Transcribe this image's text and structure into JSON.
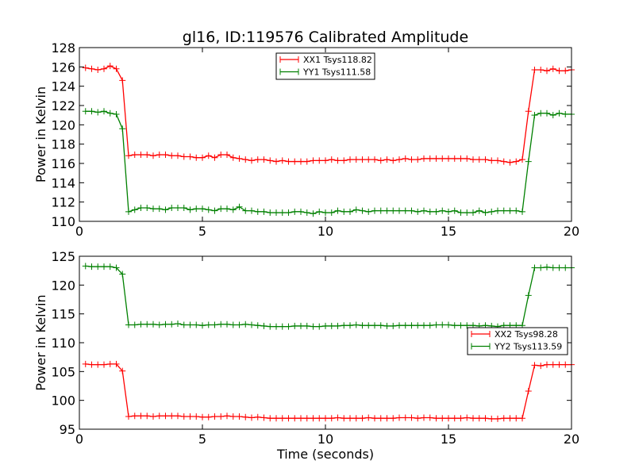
{
  "title": "gl16, ID:119576 Calibrated Amplitude",
  "colors": {
    "xx": "#ff0000",
    "yy": "#008000"
  },
  "chart_data": [
    {
      "type": "line",
      "title": "gl16, ID:119576 Calibrated Amplitude",
      "xlabel": "",
      "ylabel": "Power in Kelvin",
      "xlim": [
        0,
        20
      ],
      "ylim": [
        110,
        128
      ],
      "xticks": [
        0,
        5,
        10,
        15,
        20
      ],
      "yticks": [
        110,
        112,
        114,
        116,
        118,
        120,
        122,
        124,
        126,
        128
      ],
      "legend_position": "top-center",
      "grid": false,
      "series": [
        {
          "name": "XX1 Tsys118.82",
          "color": "#ff0000",
          "x": [
            0.25,
            0.5,
            0.75,
            1.0,
            1.25,
            1.5,
            1.75,
            2.0,
            2.25,
            2.5,
            2.75,
            3.0,
            3.25,
            3.5,
            3.75,
            4.0,
            4.25,
            4.5,
            4.75,
            5.0,
            5.25,
            5.5,
            5.75,
            6.0,
            6.25,
            6.5,
            6.75,
            7.0,
            7.25,
            7.5,
            7.75,
            8.0,
            8.25,
            8.5,
            8.75,
            9.0,
            9.25,
            9.5,
            9.75,
            10.0,
            10.25,
            10.5,
            10.75,
            11.0,
            11.25,
            11.5,
            11.75,
            12.0,
            12.25,
            12.5,
            12.75,
            13.0,
            13.25,
            13.5,
            13.75,
            14.0,
            14.25,
            14.5,
            14.75,
            15.0,
            15.25,
            15.5,
            15.75,
            16.0,
            16.25,
            16.5,
            16.75,
            17.0,
            17.25,
            17.5,
            17.75,
            18.0,
            18.25,
            18.5,
            18.75,
            19.0,
            19.25,
            19.5,
            19.75,
            20.0
          ],
          "values": [
            125.9,
            125.8,
            125.7,
            125.8,
            126.1,
            125.8,
            124.6,
            116.8,
            116.9,
            116.9,
            116.9,
            116.8,
            116.9,
            116.9,
            116.8,
            116.8,
            116.7,
            116.7,
            116.6,
            116.6,
            116.8,
            116.6,
            116.9,
            116.9,
            116.6,
            116.5,
            116.4,
            116.3,
            116.4,
            116.4,
            116.3,
            116.2,
            116.3,
            116.2,
            116.2,
            116.2,
            116.2,
            116.3,
            116.3,
            116.3,
            116.4,
            116.3,
            116.3,
            116.4,
            116.4,
            116.4,
            116.4,
            116.4,
            116.3,
            116.4,
            116.3,
            116.4,
            116.5,
            116.4,
            116.4,
            116.5,
            116.5,
            116.5,
            116.5,
            116.5,
            116.5,
            116.5,
            116.5,
            116.4,
            116.4,
            116.4,
            116.3,
            116.3,
            116.2,
            116.1,
            116.2,
            116.4,
            121.4,
            125.7,
            125.7,
            125.6,
            125.8,
            125.6,
            125.6,
            125.7
          ]
        },
        {
          "name": "YY1 Tsys111.58",
          "color": "#008000",
          "x": [
            0.25,
            0.5,
            0.75,
            1.0,
            1.25,
            1.5,
            1.75,
            2.0,
            2.25,
            2.5,
            2.75,
            3.0,
            3.25,
            3.5,
            3.75,
            4.0,
            4.25,
            4.5,
            4.75,
            5.0,
            5.25,
            5.5,
            5.75,
            6.0,
            6.25,
            6.5,
            6.75,
            7.0,
            7.25,
            7.5,
            7.75,
            8.0,
            8.25,
            8.5,
            8.75,
            9.0,
            9.25,
            9.5,
            9.75,
            10.0,
            10.25,
            10.5,
            10.75,
            11.0,
            11.25,
            11.5,
            11.75,
            12.0,
            12.25,
            12.5,
            12.75,
            13.0,
            13.25,
            13.5,
            13.75,
            14.0,
            14.25,
            14.5,
            14.75,
            15.0,
            15.25,
            15.5,
            15.75,
            16.0,
            16.25,
            16.5,
            16.75,
            17.0,
            17.25,
            17.5,
            17.75,
            18.0,
            18.25,
            18.5,
            18.75,
            19.0,
            19.25,
            19.5,
            19.75,
            20.0
          ],
          "values": [
            121.4,
            121.4,
            121.3,
            121.4,
            121.2,
            121.1,
            119.6,
            111.0,
            111.2,
            111.4,
            111.4,
            111.3,
            111.3,
            111.2,
            111.4,
            111.4,
            111.4,
            111.2,
            111.3,
            111.3,
            111.2,
            111.1,
            111.3,
            111.3,
            111.2,
            111.5,
            111.1,
            111.1,
            111.0,
            111.0,
            110.9,
            110.9,
            110.9,
            110.9,
            111.0,
            111.0,
            110.9,
            110.8,
            111.0,
            110.9,
            110.9,
            111.1,
            111.0,
            111.0,
            111.2,
            111.1,
            111.0,
            111.1,
            111.1,
            111.1,
            111.1,
            111.1,
            111.1,
            111.1,
            111.0,
            111.1,
            111.0,
            111.0,
            111.1,
            111.0,
            111.1,
            110.9,
            110.9,
            110.9,
            111.1,
            110.9,
            111.0,
            111.1,
            111.1,
            111.1,
            111.1,
            111.0,
            116.2,
            121.0,
            121.2,
            121.2,
            121.0,
            121.2,
            121.1,
            121.1
          ]
        }
      ]
    },
    {
      "type": "line",
      "title": "",
      "xlabel": "Time (seconds)",
      "ylabel": "Power in Kelvin",
      "xlim": [
        0,
        20
      ],
      "ylim": [
        95,
        125
      ],
      "xticks": [
        0,
        5,
        10,
        15,
        20
      ],
      "yticks": [
        95,
        100,
        105,
        110,
        115,
        120,
        125
      ],
      "legend_position": "center-right",
      "grid": false,
      "series": [
        {
          "name": "XX2 Tsys98.28",
          "color": "#ff0000",
          "x": [
            0.25,
            0.5,
            0.75,
            1.0,
            1.25,
            1.5,
            1.75,
            2.0,
            2.25,
            2.5,
            2.75,
            3.0,
            3.25,
            3.5,
            3.75,
            4.0,
            4.25,
            4.5,
            4.75,
            5.0,
            5.25,
            5.5,
            5.75,
            6.0,
            6.25,
            6.5,
            6.75,
            7.0,
            7.25,
            7.5,
            7.75,
            8.0,
            8.25,
            8.5,
            8.75,
            9.0,
            9.25,
            9.5,
            9.75,
            10.0,
            10.25,
            10.5,
            10.75,
            11.0,
            11.25,
            11.5,
            11.75,
            12.0,
            12.25,
            12.5,
            12.75,
            13.0,
            13.25,
            13.5,
            13.75,
            14.0,
            14.25,
            14.5,
            14.75,
            15.0,
            15.25,
            15.5,
            15.75,
            16.0,
            16.25,
            16.5,
            16.75,
            17.0,
            17.25,
            17.5,
            17.75,
            18.0,
            18.25,
            18.5,
            18.75,
            19.0,
            19.25,
            19.5,
            19.75,
            20.0
          ],
          "values": [
            106.3,
            106.2,
            106.2,
            106.2,
            106.3,
            106.3,
            105.1,
            97.2,
            97.3,
            97.3,
            97.3,
            97.2,
            97.3,
            97.3,
            97.3,
            97.3,
            97.2,
            97.2,
            97.2,
            97.1,
            97.1,
            97.2,
            97.2,
            97.3,
            97.2,
            97.2,
            97.1,
            97.0,
            97.1,
            97.0,
            96.9,
            96.9,
            96.9,
            96.9,
            96.9,
            96.9,
            96.9,
            96.9,
            96.9,
            96.9,
            96.9,
            97.0,
            96.9,
            96.9,
            96.9,
            96.9,
            97.0,
            96.9,
            96.9,
            96.9,
            96.9,
            97.0,
            97.0,
            97.0,
            96.9,
            97.0,
            97.0,
            96.9,
            96.9,
            96.9,
            96.9,
            96.9,
            97.0,
            96.9,
            96.9,
            96.9,
            96.8,
            96.8,
            96.9,
            96.9,
            96.9,
            96.9,
            101.6,
            106.1,
            106.0,
            106.2,
            106.2,
            106.2,
            106.2,
            106.2
          ]
        },
        {
          "name": "YY2 Tsys113.59",
          "color": "#008000",
          "x": [
            0.25,
            0.5,
            0.75,
            1.0,
            1.25,
            1.5,
            1.75,
            2.0,
            2.25,
            2.5,
            2.75,
            3.0,
            3.25,
            3.5,
            3.75,
            4.0,
            4.25,
            4.5,
            4.75,
            5.0,
            5.25,
            5.5,
            5.75,
            6.0,
            6.25,
            6.5,
            6.75,
            7.0,
            7.25,
            7.5,
            7.75,
            8.0,
            8.25,
            8.5,
            8.75,
            9.0,
            9.25,
            9.5,
            9.75,
            10.0,
            10.25,
            10.5,
            10.75,
            11.0,
            11.25,
            11.5,
            11.75,
            12.0,
            12.25,
            12.5,
            12.75,
            13.0,
            13.25,
            13.5,
            13.75,
            14.0,
            14.25,
            14.5,
            14.75,
            15.0,
            15.25,
            15.5,
            15.75,
            16.0,
            16.25,
            16.5,
            16.75,
            17.0,
            17.25,
            17.5,
            17.75,
            18.0,
            18.25,
            18.5,
            18.75,
            19.0,
            19.25,
            19.5,
            19.75,
            20.0
          ],
          "values": [
            123.3,
            123.2,
            123.2,
            123.2,
            123.2,
            123.0,
            121.9,
            113.1,
            113.1,
            113.2,
            113.2,
            113.2,
            113.1,
            113.2,
            113.2,
            113.3,
            113.1,
            113.1,
            113.1,
            113.0,
            113.1,
            113.1,
            113.2,
            113.2,
            113.1,
            113.1,
            113.2,
            113.1,
            113.0,
            112.9,
            112.8,
            112.8,
            112.8,
            112.8,
            112.9,
            112.9,
            112.9,
            112.8,
            112.8,
            112.9,
            112.9,
            112.9,
            113.0,
            113.0,
            113.1,
            113.0,
            113.0,
            113.0,
            113.0,
            112.9,
            112.9,
            113.0,
            113.0,
            113.0,
            113.0,
            113.0,
            113.0,
            113.1,
            113.1,
            113.1,
            113.0,
            113.0,
            113.0,
            113.0,
            112.9,
            113.0,
            112.9,
            112.8,
            113.0,
            113.0,
            113.0,
            113.0,
            118.2,
            123.0,
            123.0,
            123.1,
            123.0,
            123.0,
            123.0,
            123.0
          ]
        }
      ]
    }
  ]
}
